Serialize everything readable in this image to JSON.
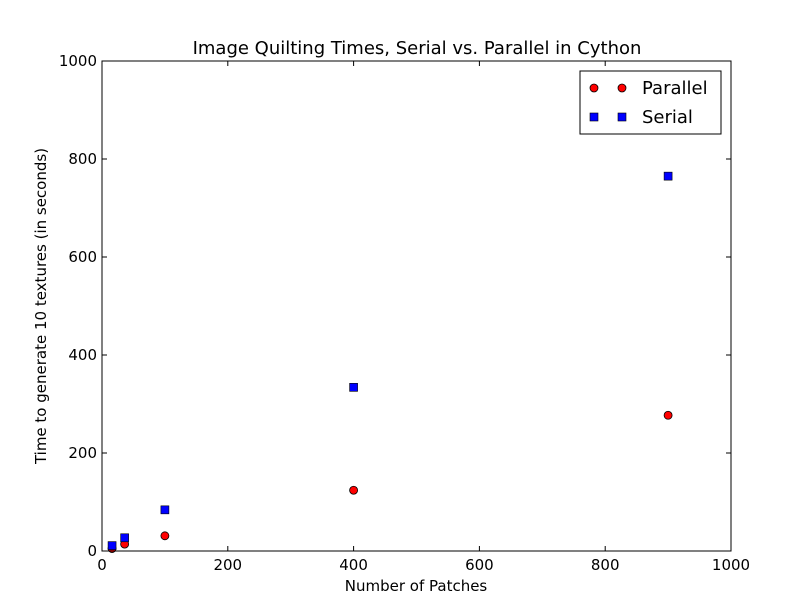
{
  "chart_data": {
    "type": "scatter",
    "title": "Image Quilting Times, Serial vs. Parallel in Cython",
    "xlabel": "Number of Patches",
    "ylabel": "Time to generate 10 textures (in seconds)",
    "xlim": [
      0,
      1000
    ],
    "ylim": [
      0,
      1000
    ],
    "xticks": [
      0,
      200,
      400,
      600,
      800,
      1000
    ],
    "yticks": [
      0,
      200,
      400,
      600,
      800,
      1000
    ],
    "legend_position": "top-right",
    "grid": false,
    "series": [
      {
        "name": "Parallel",
        "marker": "circle",
        "color": "#ff0000",
        "x": [
          16,
          36,
          100,
          400,
          900
        ],
        "y": [
          5,
          14,
          31,
          124,
          277
        ]
      },
      {
        "name": "Serial",
        "marker": "square",
        "color": "#0000ff",
        "x": [
          16,
          36,
          100,
          400,
          900
        ],
        "y": [
          11,
          27,
          84,
          334,
          765
        ]
      }
    ]
  }
}
